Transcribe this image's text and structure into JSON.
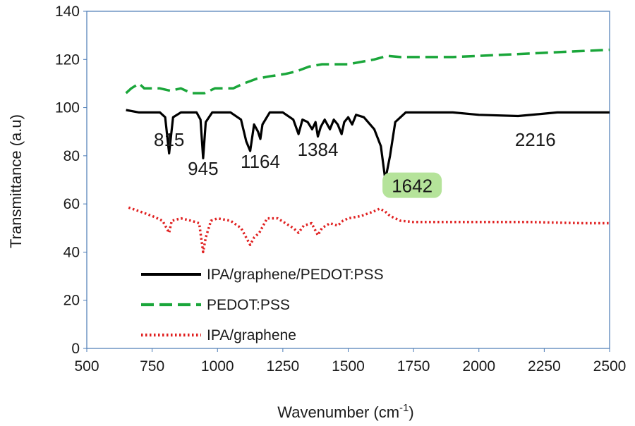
{
  "chart_data": {
    "type": "line",
    "xlabel": "Wavenumber (cm",
    "xlabel_sup": "-1",
    "xlabel_end": ")",
    "ylabel": "Transmittance (a.u)",
    "xlim": [
      500,
      2500
    ],
    "ylim": [
      0,
      140
    ],
    "xticks": [
      500,
      750,
      1000,
      1250,
      1500,
      1750,
      2000,
      2250,
      2500
    ],
    "yticks": [
      0,
      20,
      40,
      60,
      80,
      100,
      120,
      140
    ],
    "grid": false,
    "legend_position": "bottom-left",
    "series": [
      {
        "name": "IPA/graphene/PEDOT:PSS",
        "color": "#000000",
        "style": "solid",
        "points": [
          [
            650,
            99
          ],
          [
            700,
            98
          ],
          [
            780,
            98
          ],
          [
            800,
            96
          ],
          [
            815,
            81
          ],
          [
            830,
            96
          ],
          [
            860,
            98
          ],
          [
            920,
            98
          ],
          [
            935,
            95
          ],
          [
            945,
            79
          ],
          [
            955,
            94
          ],
          [
            980,
            98
          ],
          [
            1050,
            98
          ],
          [
            1090,
            95
          ],
          [
            1110,
            86
          ],
          [
            1125,
            82
          ],
          [
            1140,
            93
          ],
          [
            1155,
            90
          ],
          [
            1164,
            87
          ],
          [
            1172,
            93
          ],
          [
            1200,
            98
          ],
          [
            1250,
            98
          ],
          [
            1290,
            95
          ],
          [
            1310,
            89
          ],
          [
            1325,
            95
          ],
          [
            1345,
            94
          ],
          [
            1362,
            91
          ],
          [
            1375,
            94
          ],
          [
            1384,
            88
          ],
          [
            1395,
            92
          ],
          [
            1410,
            95
          ],
          [
            1430,
            91
          ],
          [
            1445,
            95
          ],
          [
            1460,
            93
          ],
          [
            1475,
            89
          ],
          [
            1485,
            94
          ],
          [
            1500,
            96
          ],
          [
            1515,
            93
          ],
          [
            1530,
            97
          ],
          [
            1560,
            96
          ],
          [
            1600,
            91
          ],
          [
            1625,
            84
          ],
          [
            1642,
            70
          ],
          [
            1660,
            80
          ],
          [
            1680,
            94
          ],
          [
            1720,
            98
          ],
          [
            1900,
            98
          ],
          [
            2000,
            97
          ],
          [
            2150,
            96.5
          ],
          [
            2300,
            98
          ],
          [
            2500,
            98
          ]
        ]
      },
      {
        "name": "PEDOT:PSS",
        "color": "#1aa63a",
        "style": "dashed",
        "points": [
          [
            650,
            106
          ],
          [
            670,
            108
          ],
          [
            700,
            110
          ],
          [
            720,
            108
          ],
          [
            780,
            108
          ],
          [
            820,
            107
          ],
          [
            860,
            108
          ],
          [
            900,
            106
          ],
          [
            950,
            106
          ],
          [
            990,
            108
          ],
          [
            1020,
            108
          ],
          [
            1060,
            108
          ],
          [
            1100,
            110
          ],
          [
            1150,
            112
          ],
          [
            1200,
            113
          ],
          [
            1260,
            114
          ],
          [
            1300,
            115
          ],
          [
            1350,
            117
          ],
          [
            1400,
            118
          ],
          [
            1450,
            118
          ],
          [
            1500,
            118
          ],
          [
            1550,
            119
          ],
          [
            1600,
            120
          ],
          [
            1650,
            121.5
          ],
          [
            1700,
            121
          ],
          [
            1800,
            121
          ],
          [
            1900,
            121
          ],
          [
            2000,
            121.5
          ],
          [
            2100,
            122
          ],
          [
            2200,
            122.5
          ],
          [
            2300,
            123
          ],
          [
            2400,
            123.5
          ],
          [
            2500,
            124
          ]
        ]
      },
      {
        "name": "IPA/graphene",
        "color": "#e02020",
        "style": "dotted",
        "points": [
          [
            660,
            58.5
          ],
          [
            700,
            57
          ],
          [
            750,
            55
          ],
          [
            790,
            53
          ],
          [
            805,
            50
          ],
          [
            815,
            48
          ],
          [
            825,
            53
          ],
          [
            860,
            54
          ],
          [
            900,
            53
          ],
          [
            930,
            52
          ],
          [
            945,
            40
          ],
          [
            955,
            46
          ],
          [
            975,
            53
          ],
          [
            1000,
            54
          ],
          [
            1050,
            53
          ],
          [
            1090,
            50
          ],
          [
            1110,
            46
          ],
          [
            1125,
            43
          ],
          [
            1140,
            46
          ],
          [
            1160,
            48
          ],
          [
            1170,
            50
          ],
          [
            1190,
            54
          ],
          [
            1230,
            54
          ],
          [
            1260,
            52
          ],
          [
            1290,
            50
          ],
          [
            1310,
            48
          ],
          [
            1330,
            51
          ],
          [
            1360,
            52
          ],
          [
            1384,
            47
          ],
          [
            1400,
            50
          ],
          [
            1430,
            52
          ],
          [
            1460,
            51
          ],
          [
            1480,
            53
          ],
          [
            1500,
            54
          ],
          [
            1550,
            55
          ],
          [
            1600,
            57
          ],
          [
            1620,
            58
          ],
          [
            1640,
            57
          ],
          [
            1660,
            55
          ],
          [
            1700,
            53
          ],
          [
            1750,
            52.5
          ],
          [
            1800,
            52.5
          ],
          [
            2000,
            52.5
          ],
          [
            2200,
            52.5
          ],
          [
            2400,
            52
          ],
          [
            2500,
            52
          ]
        ]
      }
    ],
    "annotations": [
      {
        "text": "815",
        "x": 815,
        "y": 84
      },
      {
        "text": "945",
        "x": 945,
        "y": 72
      },
      {
        "text": "1164",
        "x": 1164,
        "y": 75
      },
      {
        "text": "1384",
        "x": 1384,
        "y": 80
      },
      {
        "text": "1642",
        "x": 1642,
        "y": 66,
        "highlight": "#b5e39a"
      },
      {
        "text": "2216",
        "x": 2216,
        "y": 84
      }
    ]
  }
}
